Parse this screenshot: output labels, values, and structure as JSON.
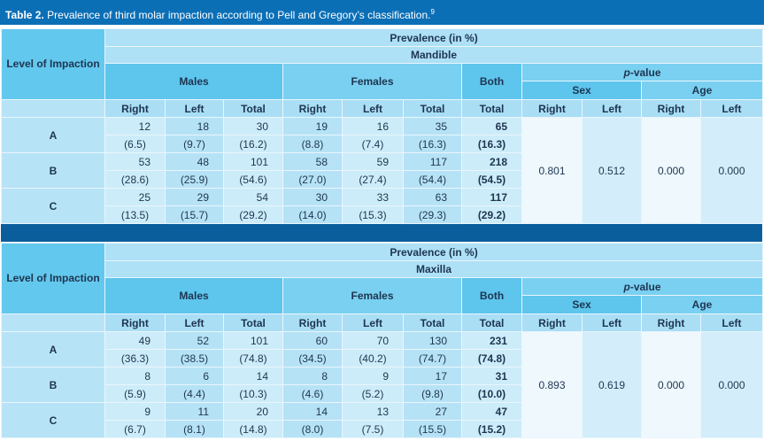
{
  "title": {
    "label": "Table 2.",
    "text": "Prevalence of third molar impaction according to Pell and Gregory’s classification.",
    "ref": "9"
  },
  "tables": [
    {
      "level_header": "Level of Impaction",
      "prevalence": "Prevalence (in %)",
      "jaw": "Mandible",
      "groups": [
        "Males",
        "Females",
        "Both"
      ],
      "pvalue": "p-value",
      "subgroups": [
        "Sex",
        "Age"
      ],
      "columns": [
        "Right",
        "Left",
        "Total",
        "Right",
        "Left",
        "Total",
        "Total",
        "Right",
        "Left",
        "Right",
        "Left"
      ],
      "rows": [
        {
          "level": "A",
          "counts": [
            12,
            18,
            30,
            19,
            16,
            35,
            65
          ],
          "percents": [
            "(6.5)",
            "(9.7)",
            "(16.2)",
            "(8.8)",
            "(7.4)",
            "(16.3)",
            "(16.3)"
          ]
        },
        {
          "level": "B",
          "counts": [
            53,
            48,
            101,
            58,
            59,
            117,
            218
          ],
          "percents": [
            "(28.6)",
            "(25.9)",
            "(54.6)",
            "(27.0)",
            "(27.4)",
            "(54.4)",
            "(54.5)"
          ]
        },
        {
          "level": "C",
          "counts": [
            25,
            29,
            54,
            30,
            33,
            63,
            117
          ],
          "percents": [
            "(13.5)",
            "(15.7)",
            "(29.2)",
            "(14.0)",
            "(15.3)",
            "(29.3)",
            "(29.2)"
          ]
        }
      ],
      "pvalues": [
        "0.801",
        "0.512",
        "0.000",
        "0.000"
      ]
    },
    {
      "level_header": "Level of Impaction",
      "prevalence": "Prevalence (in %)",
      "jaw": "Maxilla",
      "groups": [
        "Males",
        "Females",
        "Both"
      ],
      "pvalue": "p-value",
      "subgroups": [
        "Sex",
        "Age"
      ],
      "columns": [
        "Right",
        "Left",
        "Total",
        "Right",
        "Left",
        "Total",
        "Total",
        "Right",
        "Left",
        "Right",
        "Left"
      ],
      "rows": [
        {
          "level": "A",
          "counts": [
            49,
            52,
            101,
            60,
            70,
            130,
            231
          ],
          "percents": [
            "(36.3)",
            "(38.5)",
            "(74.8)",
            "(34.5)",
            "(40.2)",
            "(74.7)",
            "(74.8)"
          ]
        },
        {
          "level": "B",
          "counts": [
            8,
            6,
            14,
            8,
            9,
            17,
            31
          ],
          "percents": [
            "(5.9)",
            "(4.4)",
            "(10.3)",
            "(4.6)",
            "(5.2)",
            "(9.8)",
            "(10.0)"
          ]
        },
        {
          "level": "C",
          "counts": [
            9,
            11,
            20,
            14,
            13,
            27,
            47
          ],
          "percents": [
            "(6.7)",
            "(8.1)",
            "(14.8)",
            "(8.0)",
            "(7.5)",
            "(15.5)",
            "(15.2)"
          ]
        }
      ],
      "pvalues": [
        "0.893",
        "0.619",
        "0.000",
        "0.000"
      ]
    }
  ]
}
